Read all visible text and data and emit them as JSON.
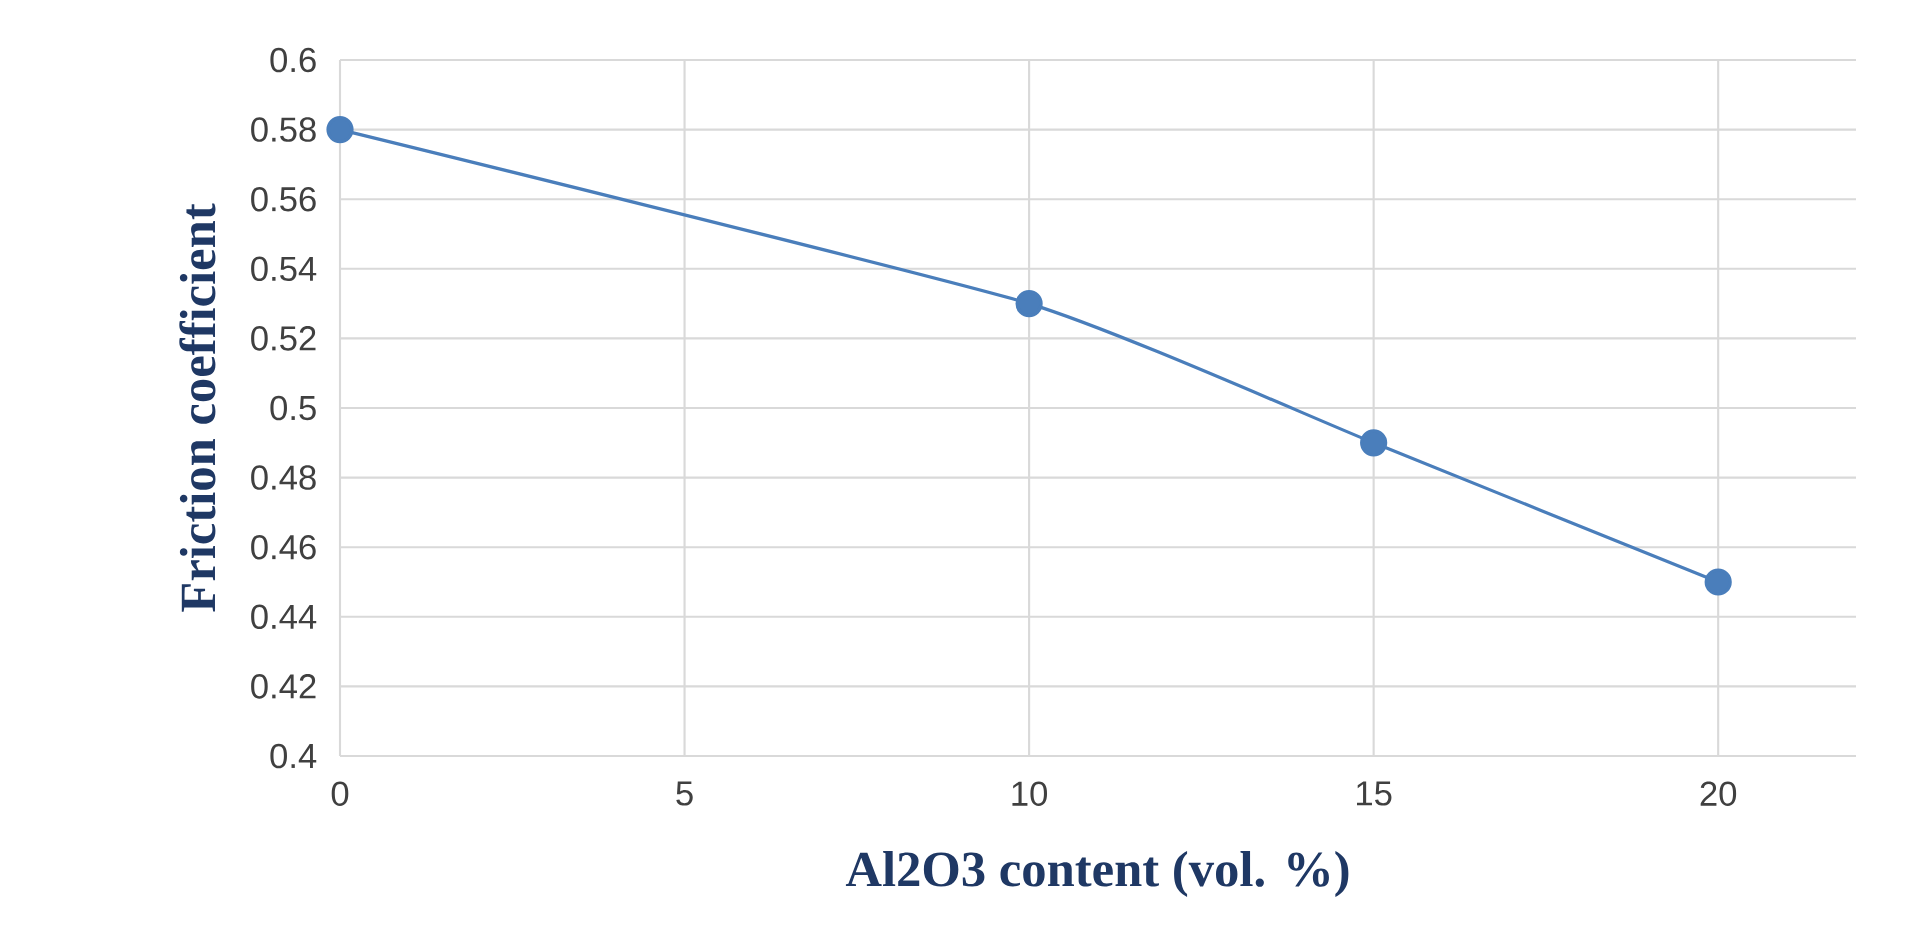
{
  "chart_data": {
    "type": "line",
    "xlabel": "Al2O3 content (vol. %)",
    "ylabel": "Friction coefficient",
    "x": [
      0,
      10,
      15,
      20
    ],
    "series": [
      {
        "color": "#4a7ebb",
        "values": [
          0.58,
          0.53,
          0.49,
          0.45
        ]
      }
    ],
    "xlim": [
      0,
      22
    ],
    "xticks": [
      0,
      5,
      10,
      15,
      20
    ],
    "ylim": [
      0.4,
      0.6
    ],
    "yticks": [
      0.4,
      0.42,
      0.44,
      0.46,
      0.48,
      0.5,
      0.52,
      0.54,
      0.56,
      0.58,
      0.6
    ],
    "grid": true,
    "marker": "circle",
    "line_style": "solid"
  }
}
